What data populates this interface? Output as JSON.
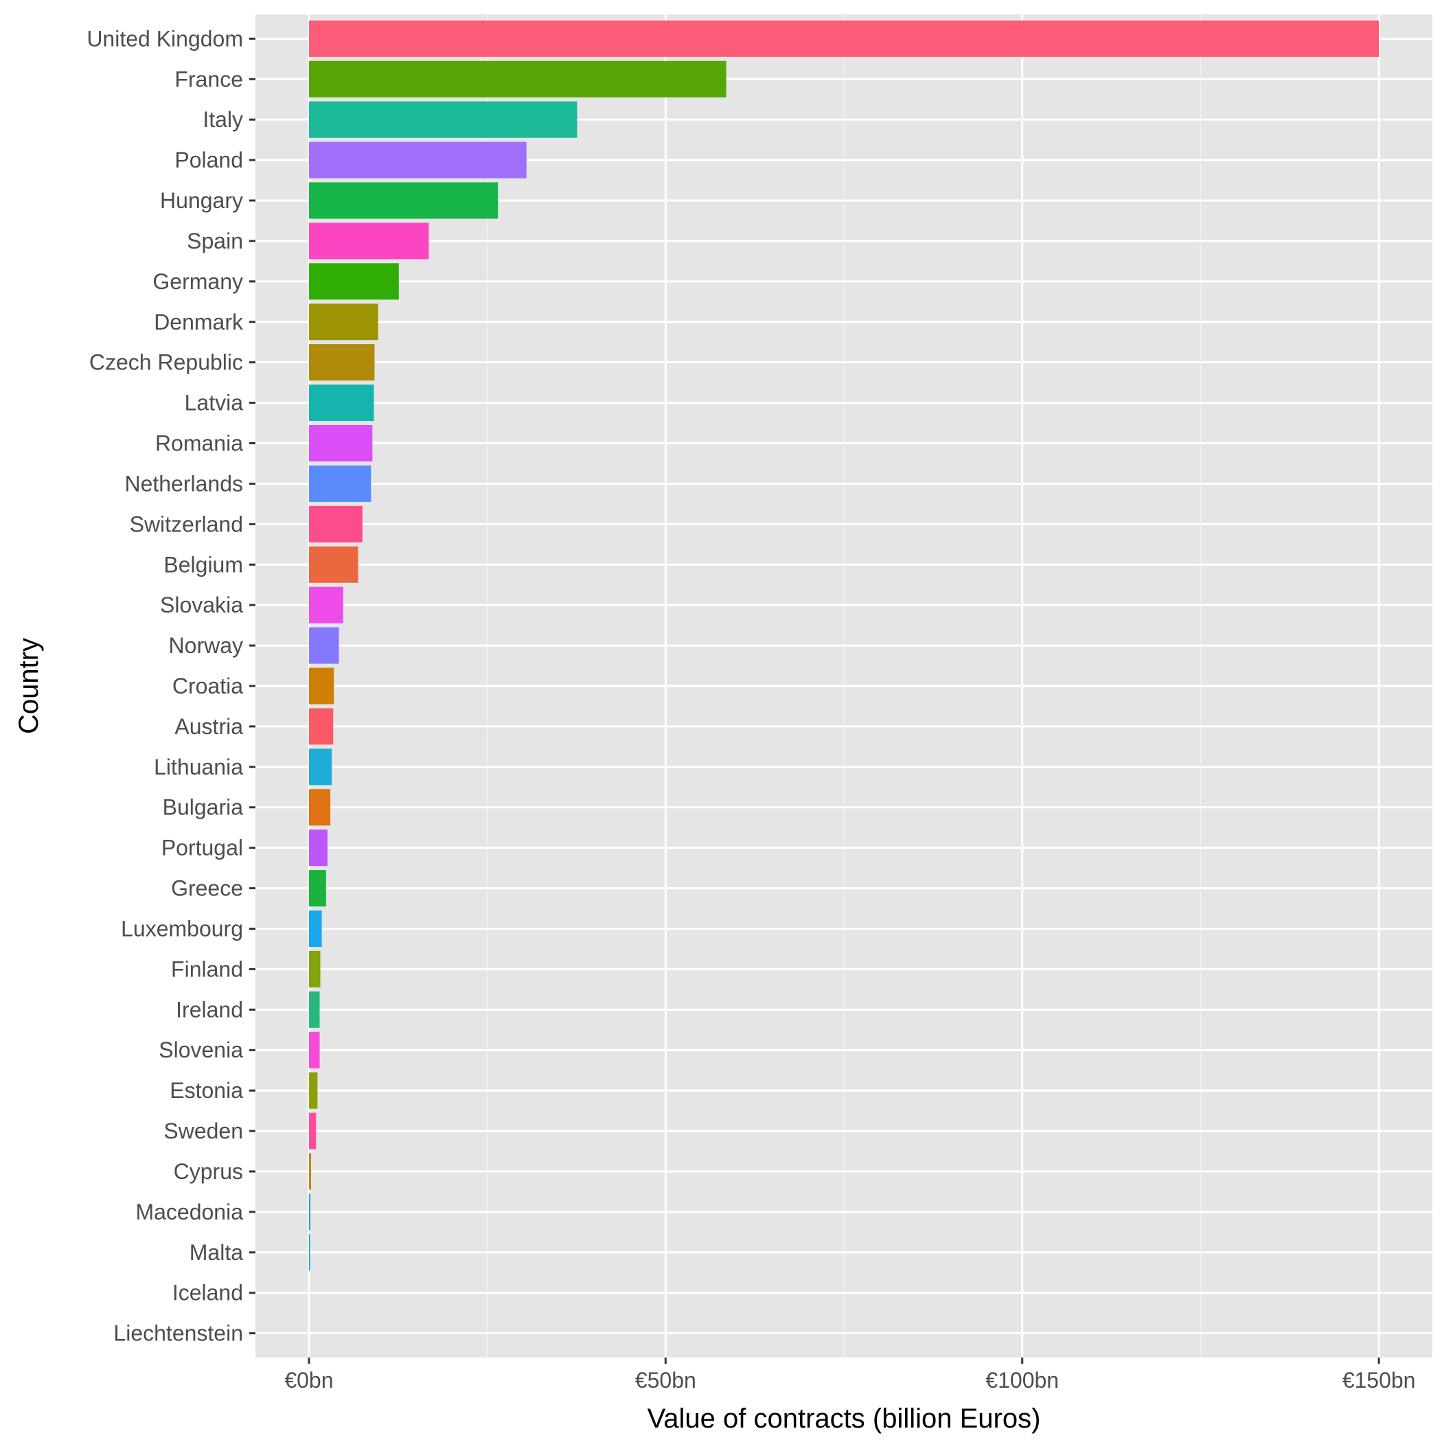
{
  "chart_data": {
    "type": "bar",
    "orientation": "horizontal",
    "title": "",
    "xlabel": "Value of contracts (billion Euros)",
    "ylabel": "Country",
    "xlim": [
      -7.5,
      157.5
    ],
    "x_ticks": [
      0,
      50,
      100,
      150
    ],
    "x_tick_labels": [
      "€0bn",
      "€50bn",
      "€100bn",
      "€150bn"
    ],
    "grid": true,
    "legend": "none",
    "background": "#e5e5e5",
    "categories": [
      "United Kingdom",
      "France",
      "Italy",
      "Poland",
      "Hungary",
      "Spain",
      "Germany",
      "Denmark",
      "Czech Republic",
      "Latvia",
      "Romania",
      "Netherlands",
      "Switzerland",
      "Belgium",
      "Slovakia",
      "Norway",
      "Croatia",
      "Austria",
      "Lithuania",
      "Bulgaria",
      "Portugal",
      "Greece",
      "Luxembourg",
      "Finland",
      "Ireland",
      "Slovenia",
      "Estonia",
      "Sweden",
      "Cyprus",
      "Macedonia",
      "Malta",
      "Iceland",
      "Liechtenstein"
    ],
    "values": [
      150,
      58.5,
      37.6,
      30.5,
      26.5,
      16.8,
      12.6,
      9.7,
      9.2,
      9.1,
      8.9,
      8.7,
      7.5,
      6.9,
      4.8,
      4.2,
      3.5,
      3.4,
      3.2,
      3.0,
      2.6,
      2.4,
      1.8,
      1.6,
      1.5,
      1.5,
      1.2,
      1.0,
      0.3,
      0.2,
      0.15,
      0,
      0
    ],
    "colors": [
      "#fd5c79",
      "#58a606",
      "#1cb996",
      "#a16efc",
      "#18b548",
      "#fc45c0",
      "#2fad05",
      "#9c9404",
      "#b08a0a",
      "#15b5ad",
      "#db4ef7",
      "#5b8afd",
      "#fd4c8c",
      "#eb6740",
      "#ee4ce9",
      "#8479fd",
      "#d07f06",
      "#f95a66",
      "#1fadd7",
      "#dd7312",
      "#bd56f9",
      "#1ab33d",
      "#19a7ee",
      "#84a20b",
      "#28b77c",
      "#f54bd8",
      "#8b9e0b",
      "#fc4d9d",
      "#c48515",
      "#0ca4ea",
      "#05a0f5",
      "#fd6d55",
      "#b09a04"
    ]
  }
}
